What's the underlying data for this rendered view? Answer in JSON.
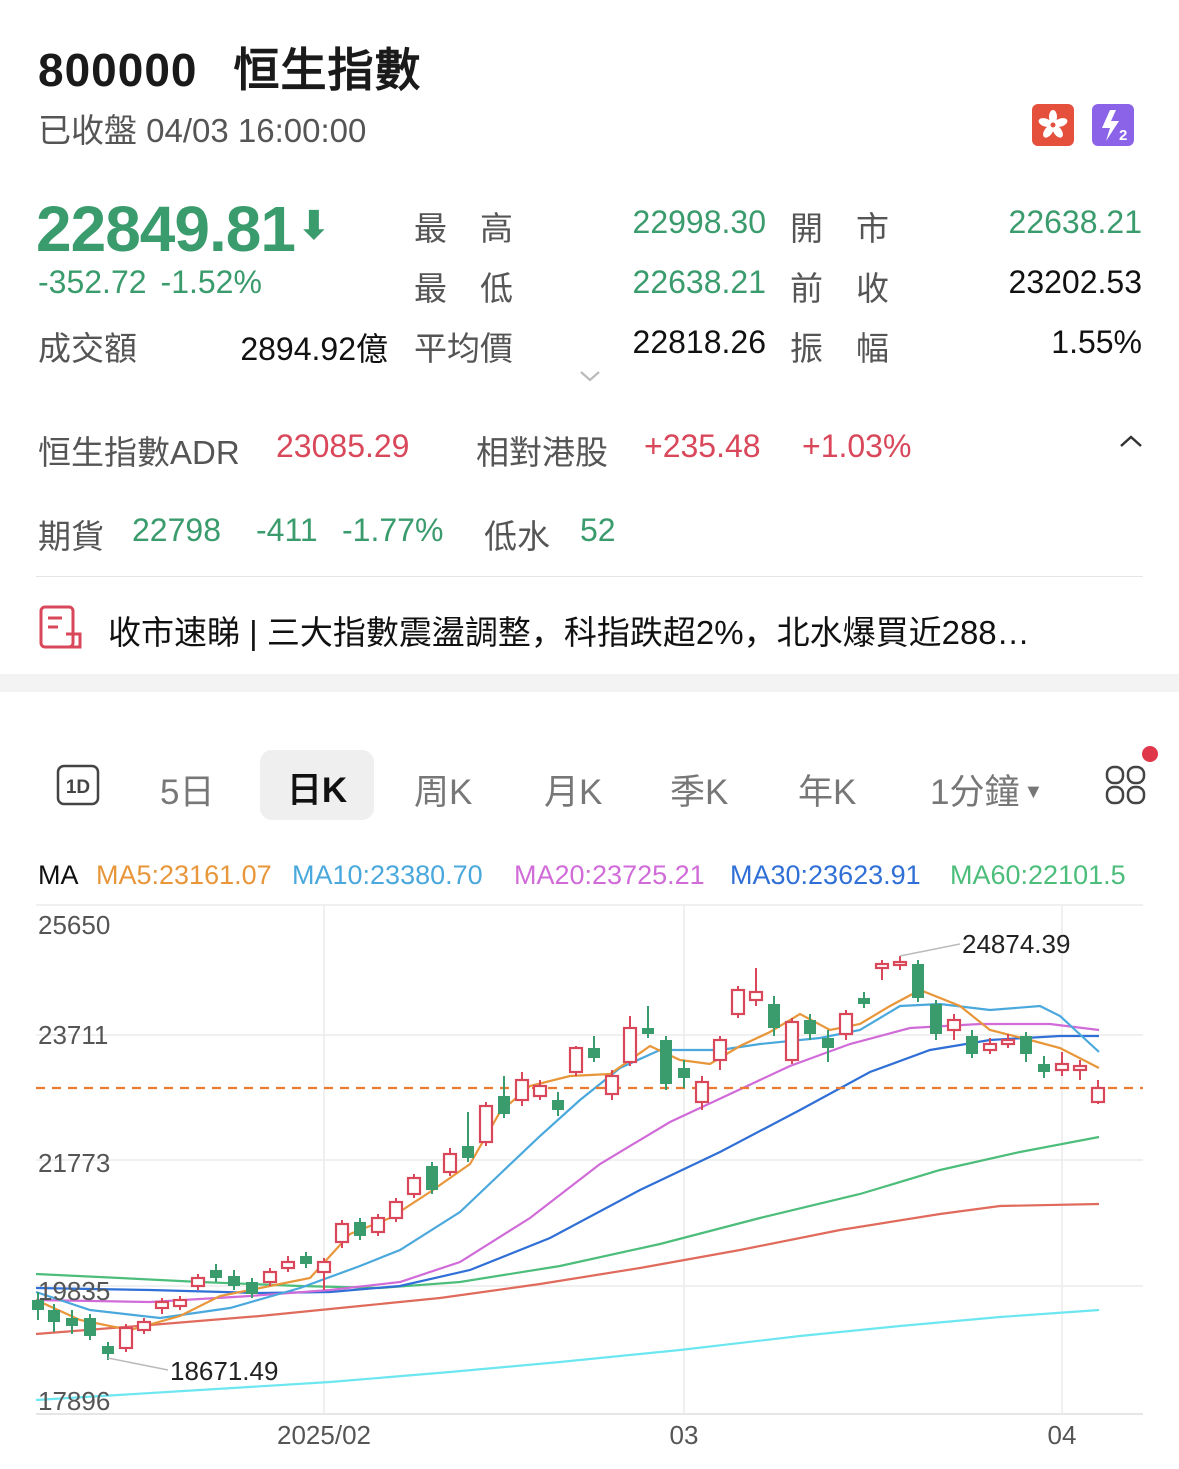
{
  "header": {
    "code": "800000",
    "name": "恒生指數",
    "status": "已收盤 04/03 16:00:00",
    "flag_icon": "hong-kong-flag-icon",
    "level2_icon": "level2-badge-icon"
  },
  "quote": {
    "price": "22849.81",
    "arrow": "⬇",
    "change": "-352.72",
    "change_pct": "-1.52%",
    "turnover_label": "成交額",
    "turnover": "2894.92億",
    "stats": [
      {
        "label": "最　高",
        "value": "22998.30",
        "color": "#3a9b6d"
      },
      {
        "label": "最　低",
        "value": "22638.21",
        "color": "#3a9b6d"
      },
      {
        "label": "平均價",
        "value": "22818.26",
        "color": "#111111"
      },
      {
        "label": "開　市",
        "value": "22638.21",
        "color": "#3a9b6d"
      },
      {
        "label": "前　收",
        "value": "23202.53",
        "color": "#111111"
      },
      {
        "label": "振　幅",
        "value": "1.55%",
        "color": "#111111"
      }
    ]
  },
  "adr": {
    "label": "恒生指數ADR",
    "value": "23085.29",
    "rel_label": "相對港股",
    "rel_change": "+235.48",
    "rel_pct": "+1.03%"
  },
  "futures": {
    "label": "期貨",
    "value": "22798",
    "change": "-411",
    "pct": "-1.77%",
    "basis_label": "低水",
    "basis": "52"
  },
  "news": {
    "icon": "news-document-icon",
    "text": "收市速睇 | 三大指數震盪調整，科指跌超2%，北水爆買近288…"
  },
  "tabs": [
    {
      "label": "1D",
      "icon": "1d-box-icon"
    },
    {
      "label": "5日"
    },
    {
      "label": "日K",
      "selected": true
    },
    {
      "label": "周K"
    },
    {
      "label": "月K"
    },
    {
      "label": "季K"
    },
    {
      "label": "年K"
    },
    {
      "label": "1分鐘"
    }
  ],
  "more_icon": "grid-more-icon",
  "ma_legend": {
    "prefix": "MA",
    "items": [
      {
        "label": "MA5:23161.07",
        "color": "#e8963a"
      },
      {
        "label": "MA10:23380.70",
        "color": "#4aa8dc"
      },
      {
        "label": "MA20:23725.21",
        "color": "#d06bd8"
      },
      {
        "label": "MA30:23623.91",
        "color": "#2f6fd6"
      },
      {
        "label": "MA60:22101.5",
        "color": "#4cbd7a"
      }
    ]
  },
  "chart_data": {
    "type": "candlestick",
    "y_ticks": [
      "25650",
      "23711",
      "21773",
      "19835",
      "17896"
    ],
    "x_ticks": [
      "2025/02",
      "03",
      "04"
    ],
    "ylim": [
      17896,
      25650
    ],
    "high_annotation": "24874.39",
    "low_annotation": "18671.49",
    "last_close_line": 22849.81,
    "up_color": "#d9475a",
    "down_color": "#3a9b6d"
  }
}
